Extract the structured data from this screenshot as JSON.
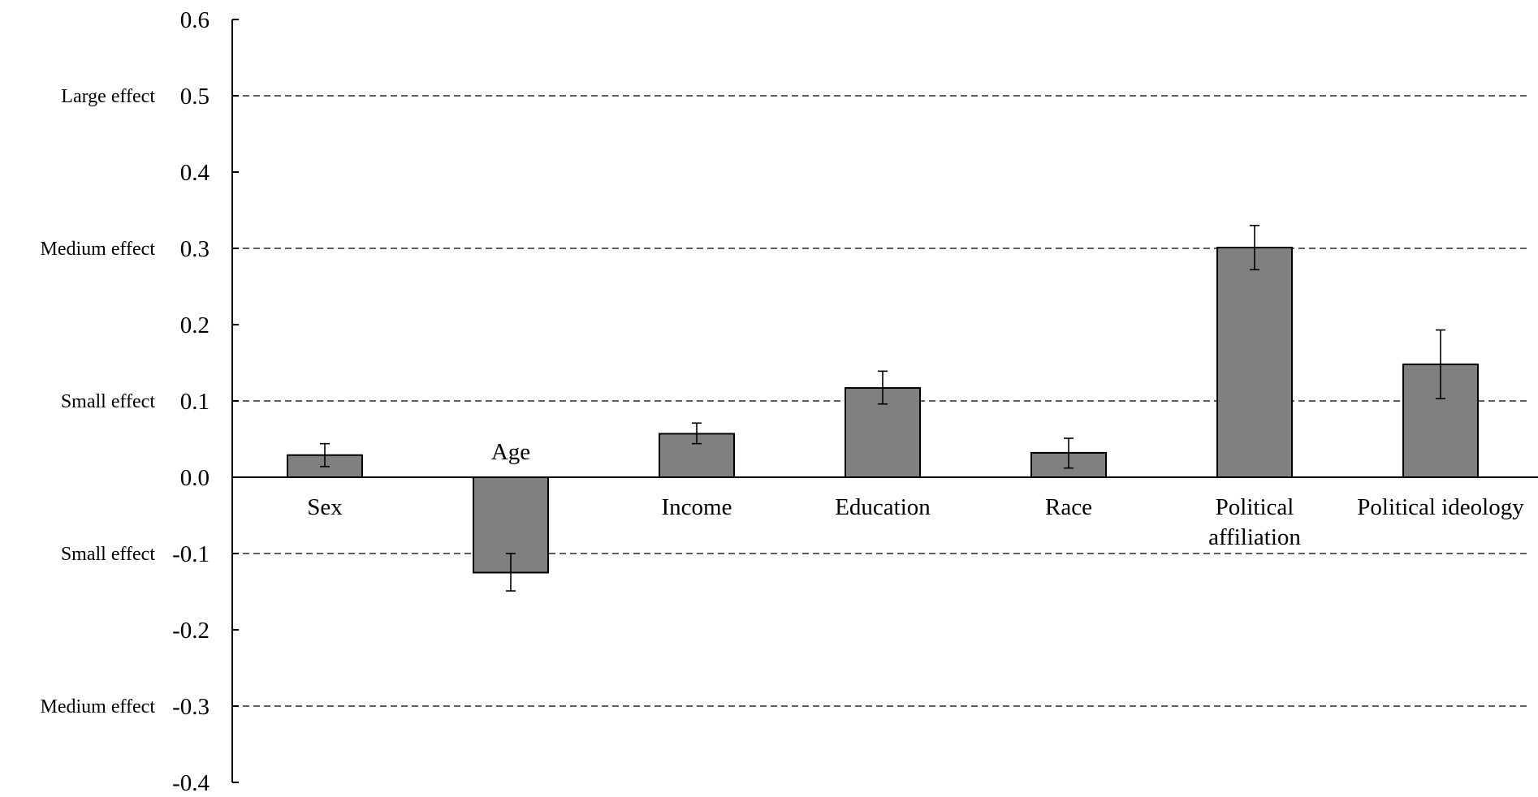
{
  "chart_data": {
    "type": "bar",
    "title": "",
    "xlabel": "",
    "ylabel": "",
    "ylim": [
      -0.4,
      0.6
    ],
    "y_ticks": [
      "0.6",
      "0.5",
      "0.4",
      "0.3",
      "0.2",
      "0.1",
      "0.0",
      "-0.1",
      "-0.2",
      "-0.3",
      "-0.4"
    ],
    "y_tick_values": [
      0.6,
      0.5,
      0.4,
      0.3,
      0.2,
      0.1,
      0.0,
      -0.1,
      -0.2,
      -0.3,
      -0.4
    ],
    "categories": [
      "Sex",
      "Age",
      "Income",
      "Education",
      "Race",
      "Political affiliation",
      "Political ideology"
    ],
    "category_lines": [
      [
        "Sex"
      ],
      [
        "Age"
      ],
      [
        "Income"
      ],
      [
        "Education"
      ],
      [
        "Race"
      ],
      [
        "Political",
        "affiliation"
      ],
      [
        "Political ideology"
      ]
    ],
    "values": [
      0.029,
      -0.125,
      0.057,
      0.117,
      0.032,
      0.301,
      0.148
    ],
    "error_low": [
      0.014,
      -0.149,
      0.044,
      0.096,
      0.012,
      0.272,
      0.103
    ],
    "error_high": [
      0.044,
      -0.1,
      0.071,
      0.139,
      0.051,
      0.33,
      0.193
    ],
    "reference_lines": [
      {
        "value": 0.5,
        "label": "Large effect"
      },
      {
        "value": 0.3,
        "label": "Medium effect"
      },
      {
        "value": 0.1,
        "label": "Small effect"
      },
      {
        "value": -0.1,
        "label": "Small effect"
      },
      {
        "value": -0.3,
        "label": "Medium effect"
      }
    ],
    "grid": false,
    "colors": {
      "bar": "#808080",
      "edge": "#000000",
      "reference": "#000000"
    }
  }
}
